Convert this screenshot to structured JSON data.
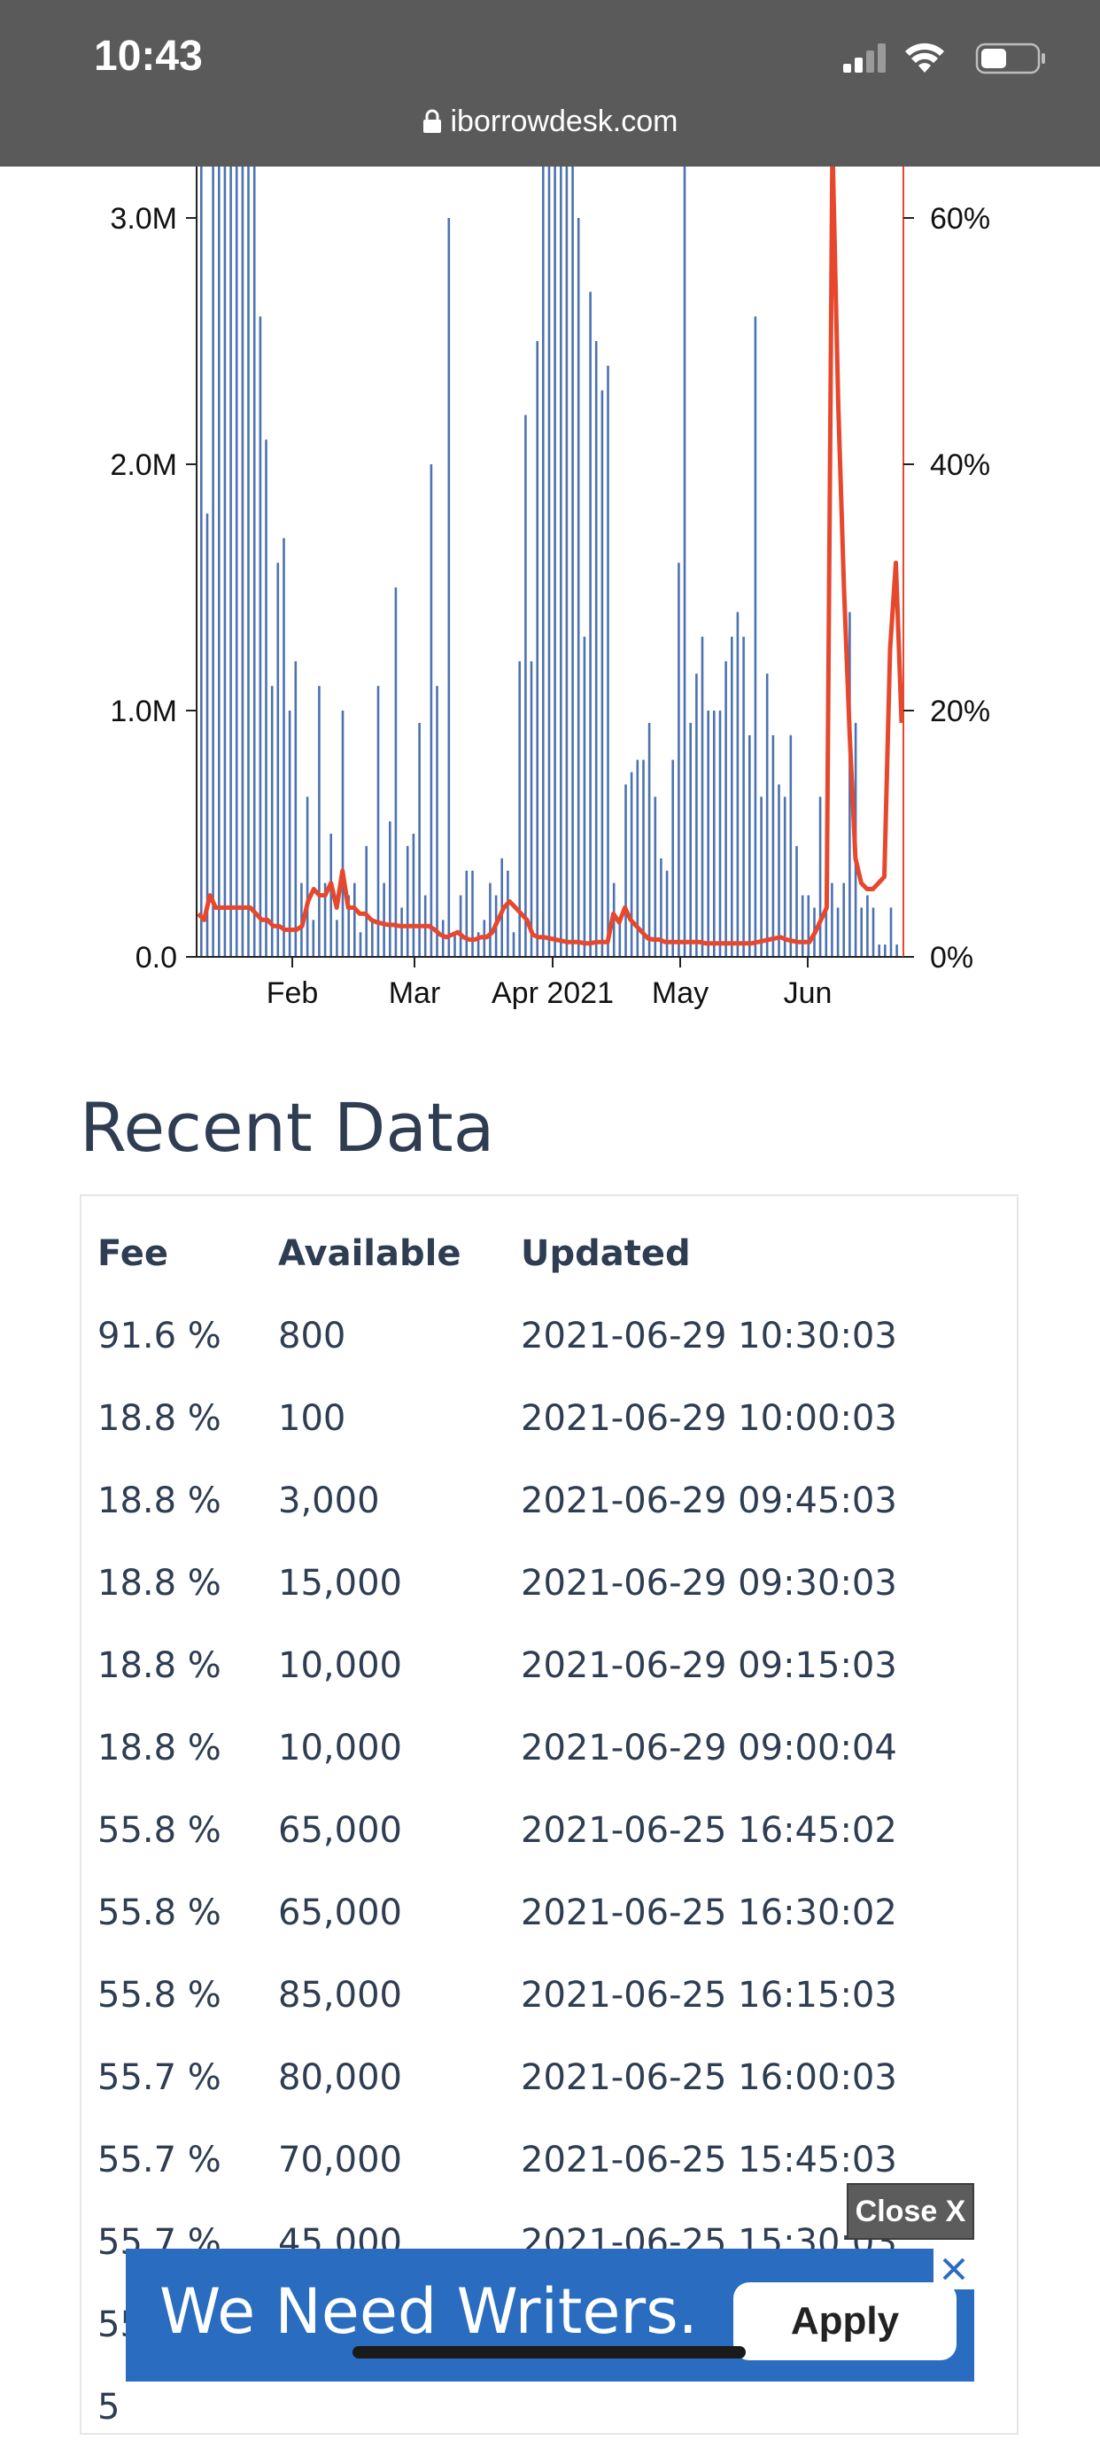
{
  "status_bar": {
    "time": "10:43",
    "url": "iborrowdesk.com"
  },
  "chart_data": {
    "type": "bar",
    "x_tick_labels": [
      "Feb",
      "Mar",
      "Apr 2021",
      "May",
      "Jun"
    ],
    "left_axis": {
      "ticks": [
        "0.0",
        "1.0M",
        "2.0M",
        "3.0M"
      ],
      "ylim": [
        0,
        3300000
      ]
    },
    "right_axis": {
      "ticks": [
        "0%",
        "20%",
        "40%",
        "60%"
      ],
      "ylim": [
        0,
        66
      ]
    },
    "series": [
      {
        "type": "bar",
        "axis": "left",
        "color": "#4c72b0",
        "values": [
          3400000,
          1800000,
          3400000,
          3400000,
          3400000,
          3400000,
          3400000,
          3400000,
          3400000,
          3400000,
          2600000,
          2100000,
          1100000,
          1600000,
          1700000,
          1000000,
          1200000,
          300000,
          650000,
          150000,
          1100000,
          300000,
          500000,
          150000,
          1000000,
          250000,
          300000,
          100000,
          450000,
          150000,
          1100000,
          300000,
          550000,
          1500000,
          200000,
          450000,
          500000,
          950000,
          250000,
          2000000,
          1100000,
          150000,
          3000000,
          100000,
          250000,
          350000,
          350000,
          100000,
          150000,
          300000,
          250000,
          400000,
          350000,
          100000,
          1200000,
          2200000,
          1200000,
          2500000,
          3400000,
          3400000,
          3400000,
          3400000,
          3400000,
          3400000,
          3000000,
          1300000,
          2700000,
          2500000,
          2300000,
          2400000,
          300000,
          150000,
          700000,
          750000,
          800000,
          800000,
          950000,
          650000,
          400000,
          350000,
          800000,
          1600000,
          3400000,
          950000,
          1150000,
          1300000,
          1000000,
          1000000,
          1000000,
          1200000,
          1300000,
          1400000,
          1300000,
          900000,
          2600000,
          650000,
          1150000,
          900000,
          700000,
          650000,
          900000,
          450000,
          250000,
          250000,
          200000,
          650000,
          300000,
          300000,
          200000,
          300000,
          1400000,
          950000,
          200000,
          250000,
          200000,
          50000,
          50000,
          200000,
          50000
        ],
        "extra_bars": []
      },
      {
        "type": "line",
        "axis": "right",
        "color": "#e6472d",
        "values": [
          3.5,
          3,
          5,
          4,
          4,
          4,
          4,
          4,
          4,
          4,
          3.5,
          3,
          3,
          2.5,
          2.5,
          2.2,
          2.2,
          2.2,
          2.5,
          4.5,
          5.5,
          5,
          5,
          6,
          4,
          7,
          4,
          4,
          3.5,
          3.5,
          3,
          2.8,
          2.7,
          2.6,
          2.6,
          2.5,
          2.5,
          2.5,
          2.5,
          2.5,
          2.5,
          2.2,
          1.8,
          1.6,
          1.8,
          2,
          1.6,
          1.4,
          1.4,
          1.6,
          1.6,
          2,
          3,
          4,
          4.5,
          4,
          3.5,
          3,
          1.8,
          1.6,
          1.6,
          1.5,
          1.4,
          1.3,
          1.2,
          1.2,
          1.2,
          1.1,
          1.1,
          1.2,
          1.2,
          1.2,
          3.5,
          2.8,
          4,
          3,
          2.5,
          2,
          1.5,
          1.4,
          1.4,
          1.2,
          1.2,
          1.2,
          1.2,
          1.2,
          1.2,
          1.2,
          1.1,
          1.1,
          1.1,
          1.1,
          1.1,
          1.1,
          1.1,
          1.1,
          1.1,
          1.2,
          1.3,
          1.4,
          1.5,
          1.6,
          1.4,
          1.3,
          1.2,
          1.2,
          1.2,
          2,
          3,
          4,
          66,
          45,
          30,
          18,
          8,
          6,
          5.5,
          5.5,
          6,
          6.5,
          25,
          32,
          19
        ]
      }
    ]
  },
  "recent_data": {
    "title": "Recent Data",
    "headers": {
      "fee": "Fee",
      "available": "Available",
      "updated": "Updated"
    },
    "rows": [
      {
        "fee": "91.6 %",
        "available": "800",
        "updated": "2021-06-29 10:30:03"
      },
      {
        "fee": "18.8 %",
        "available": "100",
        "updated": "2021-06-29 10:00:03"
      },
      {
        "fee": "18.8 %",
        "available": "3,000",
        "updated": "2021-06-29 09:45:03"
      },
      {
        "fee": "18.8 %",
        "available": "15,000",
        "updated": "2021-06-29 09:30:03"
      },
      {
        "fee": "18.8 %",
        "available": "10,000",
        "updated": "2021-06-29 09:15:03"
      },
      {
        "fee": "18.8 %",
        "available": "10,000",
        "updated": "2021-06-29 09:00:04"
      },
      {
        "fee": "55.8 %",
        "available": "65,000",
        "updated": "2021-06-25 16:45:02"
      },
      {
        "fee": "55.8 %",
        "available": "65,000",
        "updated": "2021-06-25 16:30:02"
      },
      {
        "fee": "55.8 %",
        "available": "85,000",
        "updated": "2021-06-25 16:15:03"
      },
      {
        "fee": "55.7 %",
        "available": "80,000",
        "updated": "2021-06-25 16:00:03"
      },
      {
        "fee": "55.7 %",
        "available": "70,000",
        "updated": "2021-06-25 15:45:03"
      },
      {
        "fee": "55.7 %",
        "available": "45,000",
        "updated": "2021-06-25 15:30:03"
      },
      {
        "fee": "55",
        "available": "",
        "updated": ""
      },
      {
        "fee": "5",
        "available": "",
        "updated": ""
      }
    ]
  },
  "ad": {
    "close_label": "Close X",
    "text": "We Need Writers.",
    "apply_label": "Apply",
    "colors": {
      "banner": "#2a6cc0",
      "close_button": "#5c5c5c"
    }
  },
  "icons": [
    "lock-icon",
    "cellular-signal-icon",
    "wifi-icon",
    "battery-icon",
    "ad-close-icon"
  ]
}
